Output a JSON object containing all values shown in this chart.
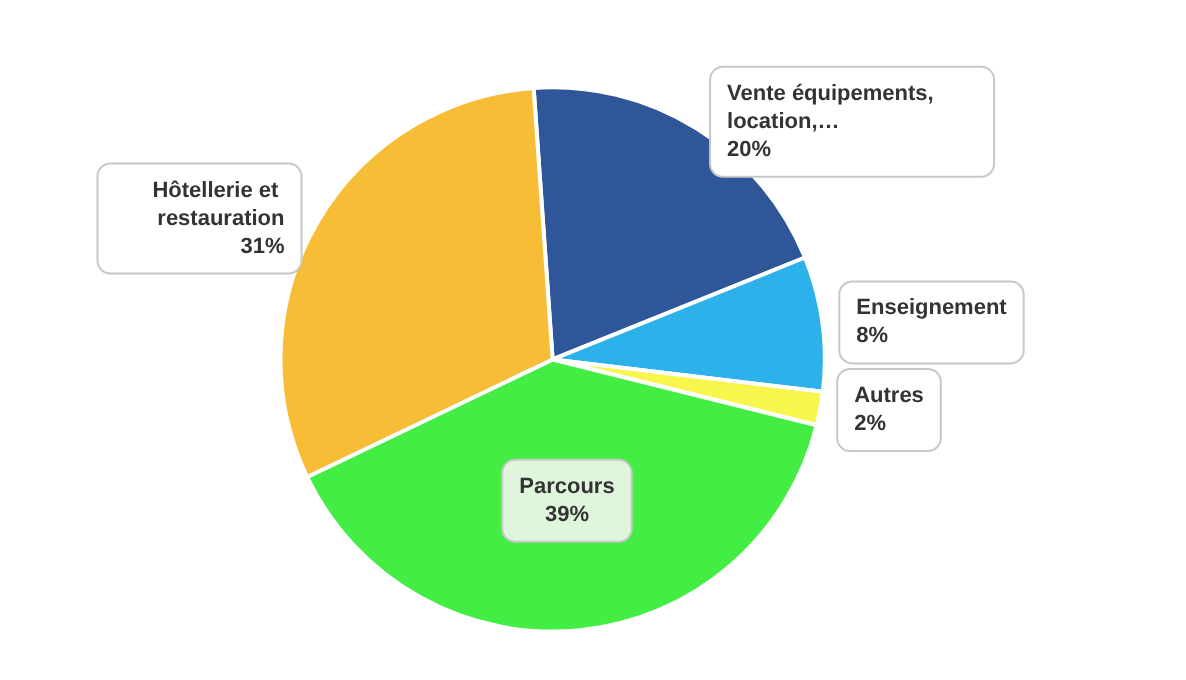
{
  "chart_data": {
    "type": "pie",
    "categories": [
      "Vente équipements, location,…",
      "Enseignement",
      "Autres",
      "Parcours",
      "Hôtellerie et restauration"
    ],
    "values": [
      20,
      8,
      2,
      39,
      31
    ],
    "value_labels": [
      "20%",
      "8%",
      "2%",
      "39%",
      "31%"
    ],
    "colors": [
      "#30569a",
      "#2db1ea",
      "#f8f54c",
      "#43ed43",
      "#f8bd37"
    ],
    "data_labels": true,
    "legend": false
  }
}
